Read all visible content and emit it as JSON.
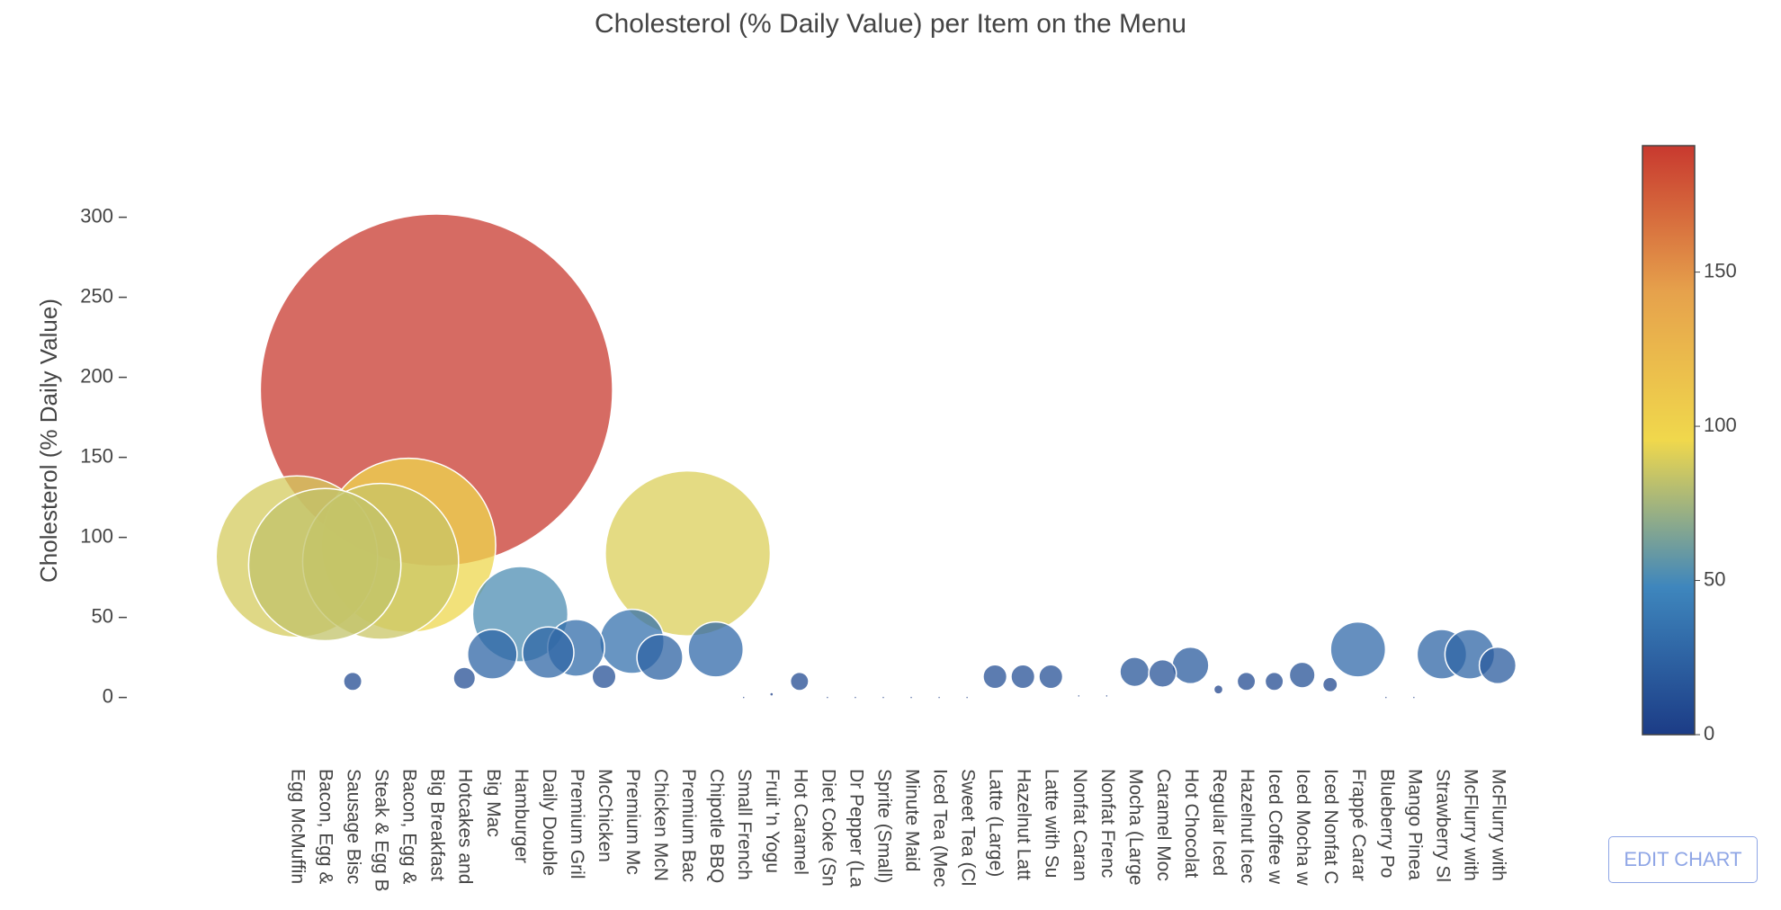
{
  "chart_data": {
    "type": "bubble",
    "title": "Cholesterol (% Daily Value) per Item on the Menu",
    "y_label": "Cholesterol (% Daily Value)",
    "categories": [
      "Egg McMuffin",
      "Bacon, Egg &",
      "Sausage Bisc",
      "Steak & Egg B",
      "Bacon, Egg &",
      "Big Breakfast",
      "Hotcakes and",
      "Big Mac",
      "Hamburger",
      "Daily Double",
      "Premium Gril",
      "McChicken",
      "Premium Mc",
      "Chicken McN",
      "Premium Bac",
      "Chipotle BBQ",
      "Small French",
      "Fruit 'n Yogu",
      "Hot Caramel",
      "Diet Coke (Sn",
      "Dr Pepper (La",
      "Sprite (Small)",
      "Minute Maid",
      "Iced Tea (Mec",
      "Sweet Tea (Cl",
      "Latte (Large)",
      "Hazelnut Latt",
      "Latte with Su",
      "Nonfat Caran",
      "Nonfat Frenc",
      "Mocha (Large",
      "Caramel Moc",
      "Hot Chocolat",
      "Regular Iced",
      "Hazelnut Icec",
      "Iced Coffee w",
      "Iced Mocha w",
      "Iced Nonfat C",
      "Frappé Carar",
      "Blueberry Po",
      "Mango Pinea",
      "Strawberry Sl",
      "McFlurry with",
      "McFlurry with"
    ],
    "values": [
      88,
      83,
      10,
      85,
      95,
      192,
      12,
      27,
      52,
      28,
      31,
      13,
      35,
      25,
      90,
      30,
      0,
      2,
      10,
      0,
      0,
      0,
      0,
      0,
      0,
      13,
      13,
      13,
      1,
      1,
      16,
      15,
      20,
      5,
      10,
      10,
      14,
      8,
      30,
      0,
      0,
      27,
      27,
      20
    ],
    "ylim": [
      -12,
      320
    ],
    "yticks": [
      0,
      50,
      100,
      150,
      200,
      250,
      300
    ],
    "clim": [
      0,
      191
    ],
    "cticks": [
      0,
      50,
      100,
      150
    ],
    "colorscale": [
      "#1c3c86",
      "#3e86bd",
      "#f0d84c",
      "#e6a24c",
      "#c8392f"
    ],
    "button": "EDIT CHART"
  }
}
